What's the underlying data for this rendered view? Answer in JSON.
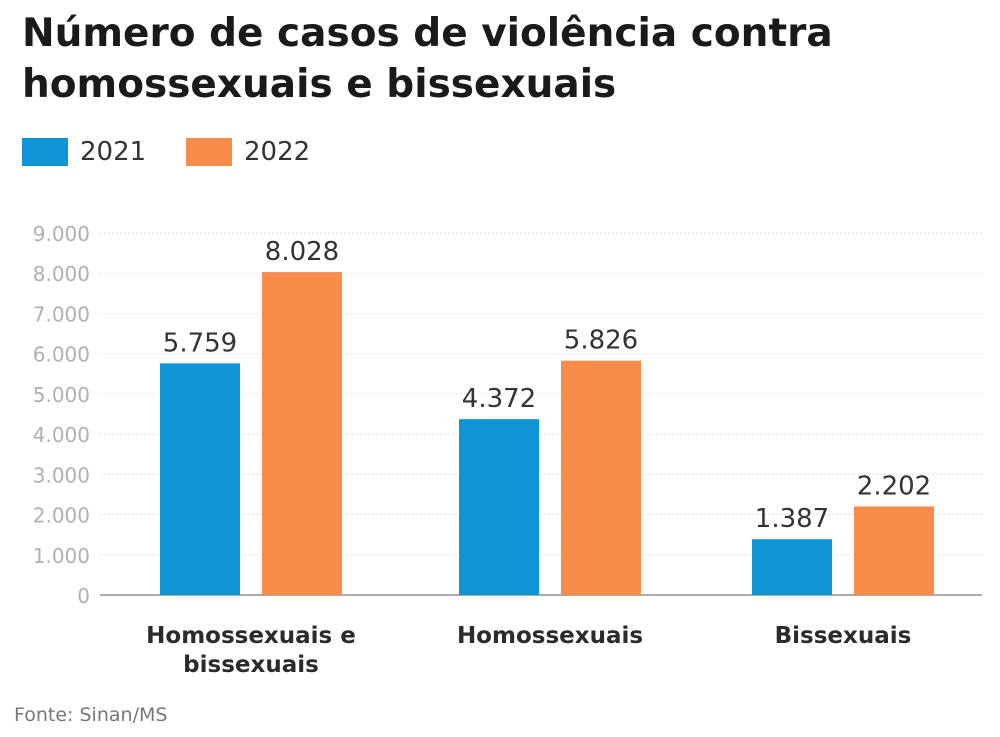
{
  "title": "Número de casos de violência contra homossexuais e bissexuais",
  "source": "Fonte: Sinan/MS",
  "colors": {
    "series_2021": "#0f95d5",
    "series_2022": "#f98c4a",
    "grid": "#e3e3e3",
    "axis": "#8f8f8f",
    "tick_text": "#b0b0b0"
  },
  "chart_data": {
    "type": "bar",
    "title": "Número de casos de violência contra homossexuais e bissexuais",
    "categories": [
      "Homossexuais e bissexuais",
      "Homossexuais",
      "Bissexuais"
    ],
    "category_lines": [
      [
        "Homossexuais e",
        "bissexuais"
      ],
      [
        "Homossexuais"
      ],
      [
        "Bissexuais"
      ]
    ],
    "series": [
      {
        "name": "2021",
        "values": [
          5759,
          4372,
          1387
        ],
        "labels": [
          "5.759",
          "4.372",
          "1.387"
        ],
        "color": "#0f95d5"
      },
      {
        "name": "2022",
        "values": [
          8028,
          5826,
          2202
        ],
        "labels": [
          "8.028",
          "5.826",
          "2.202"
        ],
        "color": "#f98c4a"
      }
    ],
    "ylim": [
      0,
      9000
    ],
    "yticks": [
      0,
      1000,
      2000,
      3000,
      4000,
      5000,
      6000,
      7000,
      8000,
      9000
    ],
    "ytick_labels": [
      "0",
      "1.000",
      "2.000",
      "3.000",
      "4.000",
      "5.000",
      "6.000",
      "7.000",
      "8.000",
      "9.000"
    ],
    "xlabel": "",
    "ylabel": "",
    "grid": true,
    "legend_position": "top-left"
  }
}
